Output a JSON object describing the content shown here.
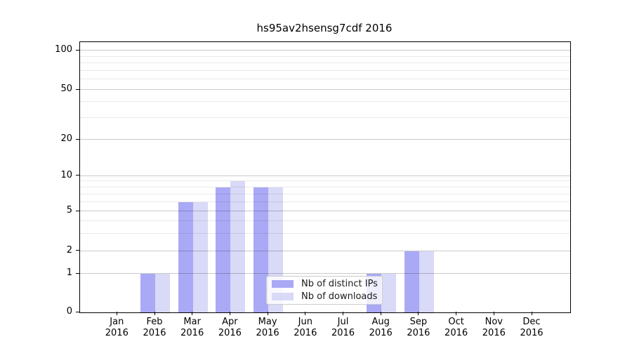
{
  "chart_data": {
    "type": "bar",
    "title": "hs95av2hsensg7cdf 2016",
    "x_tick_year": "2016",
    "categories": [
      "Jan",
      "Feb",
      "Mar",
      "Apr",
      "May",
      "Jun",
      "Jul",
      "Aug",
      "Sep",
      "Oct",
      "Nov",
      "Dec"
    ],
    "series": [
      {
        "name": "Nb of distinct IPs",
        "color": "#a9a9f5",
        "values": [
          0,
          1,
          6,
          8,
          8,
          0,
          0,
          1,
          2,
          0,
          0,
          0
        ]
      },
      {
        "name": "Nb of downloads",
        "color": "#d9d9f8",
        "values": [
          0,
          1,
          6,
          9,
          8,
          0,
          0,
          1,
          2,
          0,
          0,
          0
        ]
      }
    ],
    "y_ticks": [
      0,
      1,
      2,
      5,
      10,
      20,
      50,
      100
    ],
    "y_scale": "symlog",
    "ylim": [
      0,
      120
    ],
    "grid": true,
    "legend": {
      "position": "lower center"
    }
  }
}
